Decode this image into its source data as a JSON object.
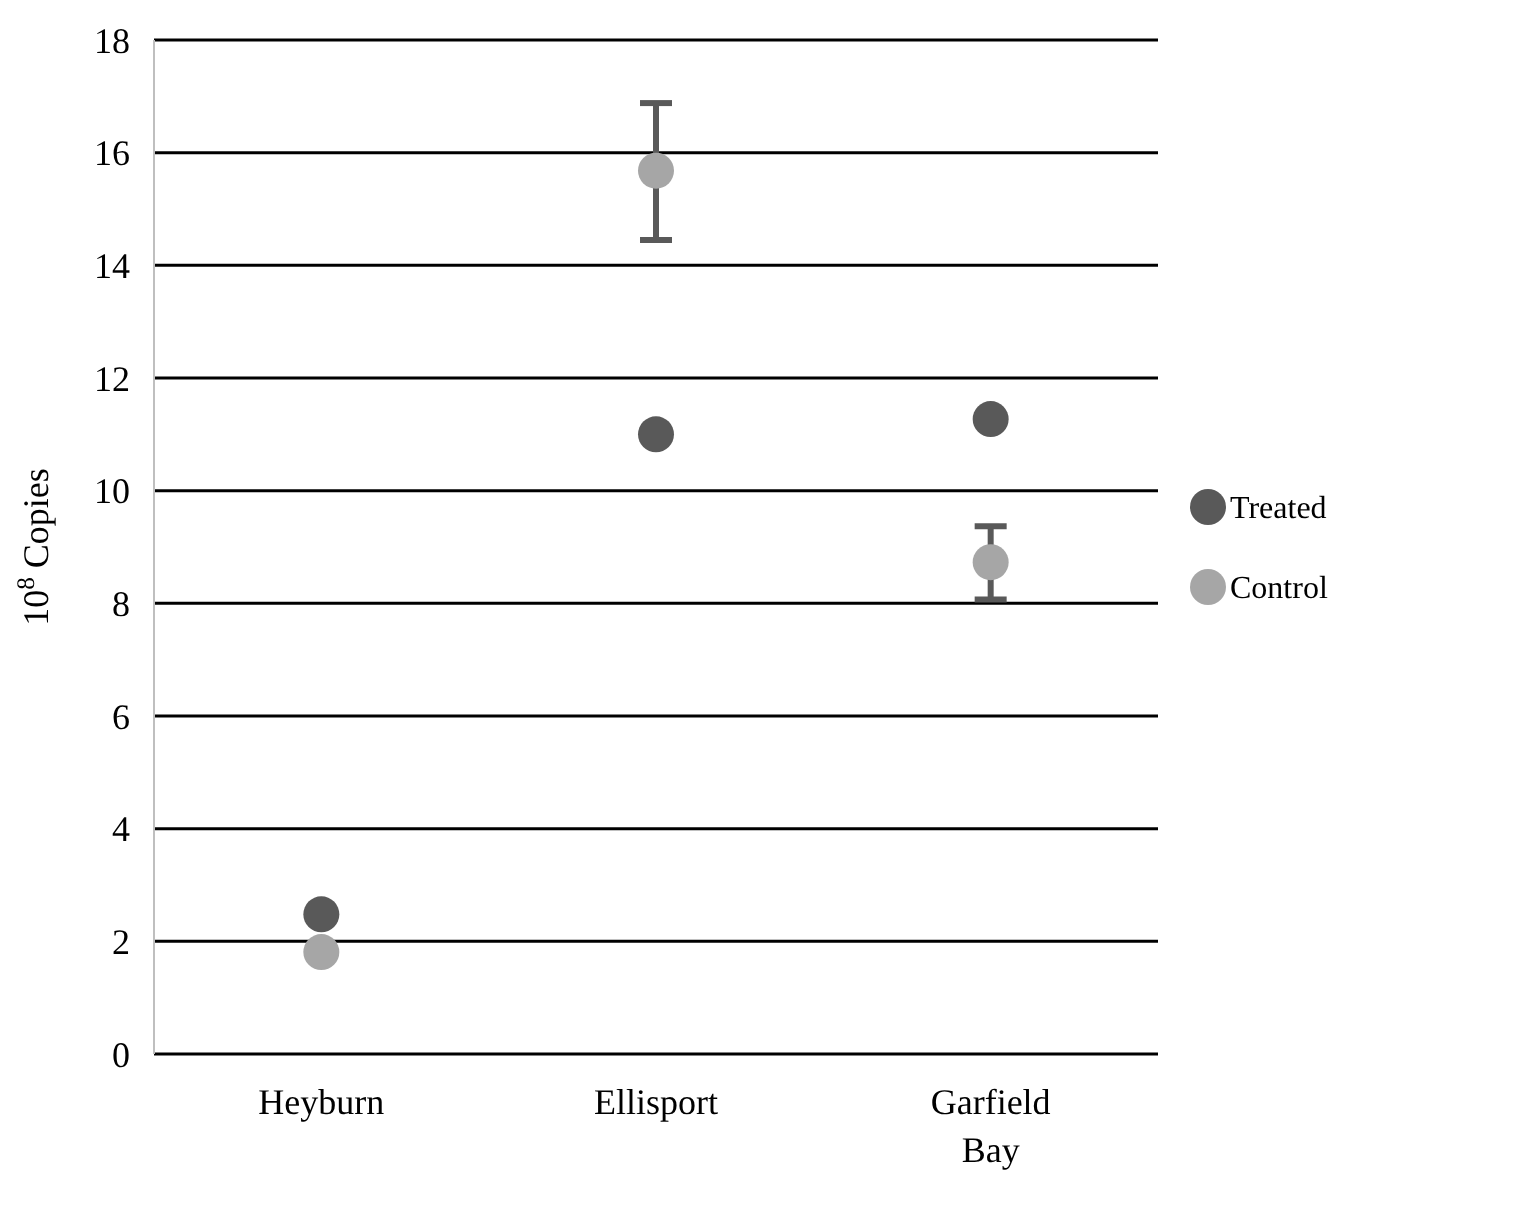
{
  "chart_data": {
    "type": "scatter",
    "ylabel": "10$^{8}$ Copies",
    "categories": [
      "Heyburn",
      "Ellisport",
      "Garfield Bay"
    ],
    "series": [
      {
        "name": "Treated",
        "color": "#595959",
        "values": [
          2.48,
          11.0,
          11.27
        ]
      },
      {
        "name": "Control",
        "color": "#a6a6a6",
        "values": [
          1.81,
          15.68,
          8.73
        ],
        "errors": [
          null,
          [
            14.45,
            16.88
          ],
          [
            8.07,
            9.37
          ]
        ]
      }
    ],
    "ylim": [
      0,
      18
    ],
    "yticks": [
      0,
      2,
      4,
      6,
      8,
      10,
      12,
      14,
      16,
      18
    ],
    "grid": "y",
    "legend": "right",
    "marker": "circle"
  }
}
